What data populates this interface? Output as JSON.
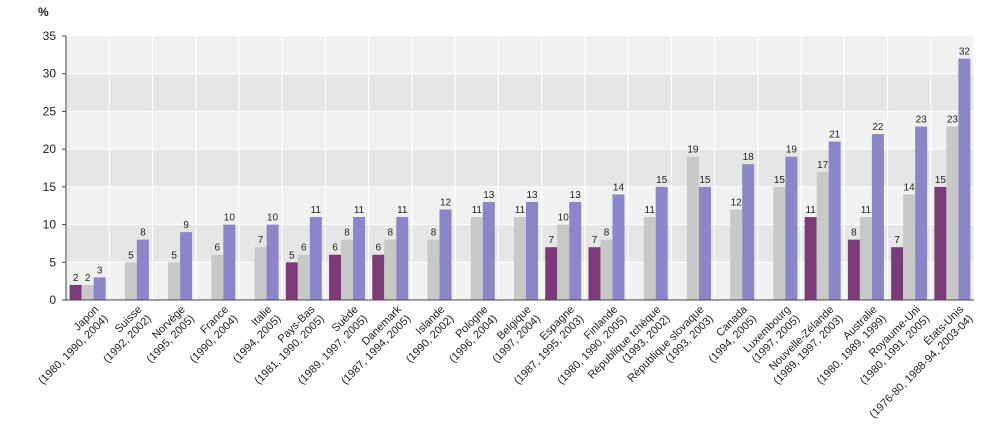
{
  "chart_data": {
    "type": "bar",
    "unit_label": "%",
    "ylim": [
      0,
      35
    ],
    "yticks": [
      0,
      5,
      10,
      15,
      20,
      25,
      30,
      35
    ],
    "grid": true,
    "colors": [
      "#7b3a78",
      "#c8c8c8",
      "#8b86c8"
    ],
    "categories": [
      {
        "name": "Japon",
        "years": "(1980, 1990, 2004)"
      },
      {
        "name": "Suisse",
        "years": "(1992, 2002)"
      },
      {
        "name": "Norvège",
        "years": "(1995, 2005)"
      },
      {
        "name": "France",
        "years": "(1990, 2004)"
      },
      {
        "name": "Italie",
        "years": "(1994, 2005)"
      },
      {
        "name": "Pays-Bas",
        "years": "(1981, 1990, 2005)"
      },
      {
        "name": "Suède",
        "years": "(1989, 1997, 2005)"
      },
      {
        "name": "Danemark",
        "years": "(1987, 1994, 2005)"
      },
      {
        "name": "Islande",
        "years": "(1990, 2002)"
      },
      {
        "name": "Pologne",
        "years": "(1996, 2004)"
      },
      {
        "name": "Belgique",
        "years": "(1997, 2004)"
      },
      {
        "name": "Espagne",
        "years": "(1987, 1995, 2003)"
      },
      {
        "name": "Finlande",
        "years": "(1980, 1990, 2005)"
      },
      {
        "name": "République tchèque",
        "years": "(1993, 2002)"
      },
      {
        "name": "République slovaque",
        "years": "(1993, 2003)"
      },
      {
        "name": "Canada",
        "years": "(1994, 2005)"
      },
      {
        "name": "Luxembourg",
        "years": "(1997, 2005)"
      },
      {
        "name": "Nouvelle-Zélande",
        "years": "(1989, 1997, 2003)"
      },
      {
        "name": "Australie",
        "years": "(1980, 1989, 1999)"
      },
      {
        "name": "Royaume-Uni",
        "years": "(1980, 1991, 2005)"
      },
      {
        "name": "États-Unis",
        "years": "(1976-80, 1988-94, 2003-04)"
      }
    ],
    "series": [
      {
        "values": [
          2,
          null,
          null,
          null,
          null,
          5,
          6,
          6,
          null,
          null,
          null,
          7,
          7,
          null,
          null,
          null,
          null,
          11,
          8,
          7,
          15
        ]
      },
      {
        "values": [
          2,
          5,
          5,
          6,
          7,
          6,
          8,
          8,
          8,
          11,
          11,
          10,
          8,
          11,
          19,
          12,
          15,
          17,
          11,
          14,
          23
        ]
      },
      {
        "values": [
          3,
          8,
          9,
          10,
          10,
          11,
          11,
          11,
          12,
          13,
          13,
          13,
          14,
          15,
          15,
          18,
          19,
          21,
          22,
          23,
          32
        ]
      }
    ]
  }
}
